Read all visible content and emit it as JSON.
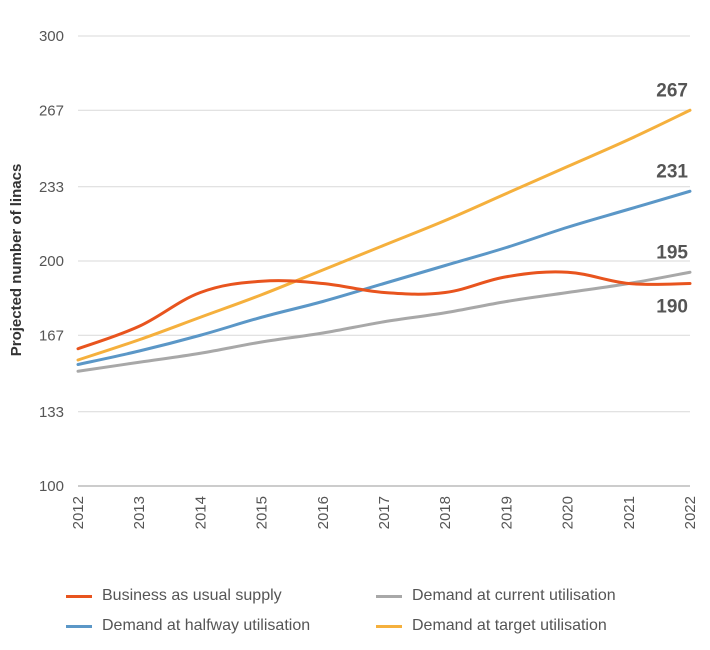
{
  "chart_data": {
    "type": "line",
    "title": "",
    "xlabel": "",
    "ylabel": "Projected number of linacs",
    "ylim": [
      100,
      300
    ],
    "yticks": [
      100,
      133,
      167,
      200,
      233,
      267,
      300
    ],
    "x": [
      "2012",
      "2013",
      "2014",
      "2015",
      "2016",
      "2017",
      "2018",
      "2019",
      "2020",
      "2021",
      "2022"
    ],
    "grid": true,
    "legend_position": "bottom",
    "series": [
      {
        "name": "Business as usual supply",
        "color": "#e8541e",
        "values": [
          161,
          171,
          186,
          191,
          190,
          186,
          186,
          193,
          195,
          190,
          190
        ],
        "end_label": "190"
      },
      {
        "name": "Demand at current utilisation",
        "color": "#a8a8a8",
        "values": [
          151,
          155,
          159,
          164,
          168,
          173,
          177,
          182,
          186,
          190,
          195
        ],
        "end_label": "195"
      },
      {
        "name": "Demand at halfway utilisation",
        "color": "#5b97c7",
        "values": [
          154,
          160,
          167,
          175,
          182,
          190,
          198,
          206,
          215,
          223,
          231
        ],
        "end_label": "231"
      },
      {
        "name": "Demand at target utilisation",
        "color": "#f5b03d",
        "values": [
          156,
          165,
          175,
          185,
          196,
          207,
          218,
          230,
          242,
          254,
          267
        ],
        "end_label": "267"
      }
    ]
  }
}
